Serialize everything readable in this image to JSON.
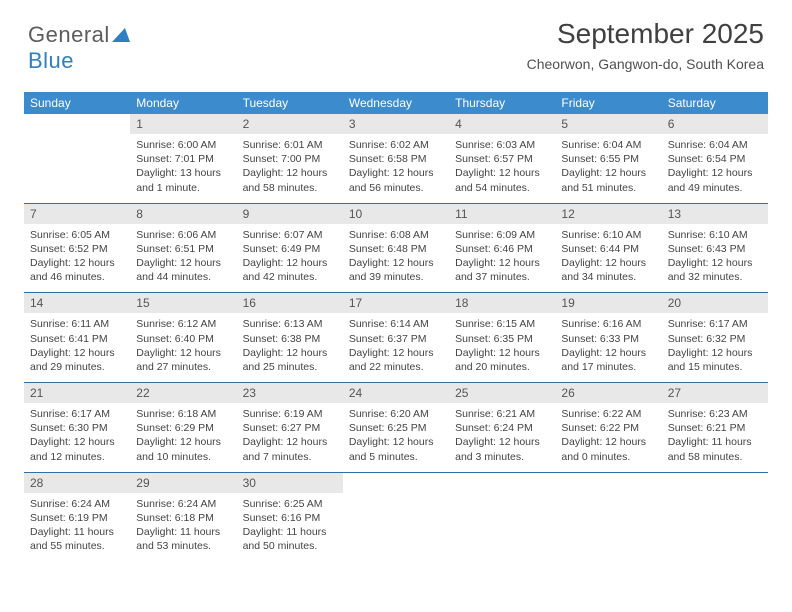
{
  "logo": {
    "text1": "General",
    "text2": "Blue"
  },
  "title": "September 2025",
  "subtitle": "Cheorwon, Gangwon-do, South Korea",
  "colors": {
    "header_bg": "#3b8bcd",
    "header_text": "#ffffff",
    "daynum_bg": "#e8e8e8",
    "row_border": "#2f6fa5",
    "title_color": "#404040",
    "body_text": "#444444",
    "logo_gray": "#5d5d5d",
    "logo_blue": "#2f7fc2"
  },
  "typography": {
    "title_fontsize": 28,
    "subtitle_fontsize": 14,
    "header_fontsize": 12,
    "daynum_fontsize": 12,
    "body_fontsize": 10.5
  },
  "daynames": [
    "Sunday",
    "Monday",
    "Tuesday",
    "Wednesday",
    "Thursday",
    "Friday",
    "Saturday"
  ],
  "weeks": [
    [
      {
        "n": "",
        "sr": "",
        "ss": "",
        "dl": ""
      },
      {
        "n": "1",
        "sr": "Sunrise: 6:00 AM",
        "ss": "Sunset: 7:01 PM",
        "dl": "Daylight: 13 hours and 1 minute."
      },
      {
        "n": "2",
        "sr": "Sunrise: 6:01 AM",
        "ss": "Sunset: 7:00 PM",
        "dl": "Daylight: 12 hours and 58 minutes."
      },
      {
        "n": "3",
        "sr": "Sunrise: 6:02 AM",
        "ss": "Sunset: 6:58 PM",
        "dl": "Daylight: 12 hours and 56 minutes."
      },
      {
        "n": "4",
        "sr": "Sunrise: 6:03 AM",
        "ss": "Sunset: 6:57 PM",
        "dl": "Daylight: 12 hours and 54 minutes."
      },
      {
        "n": "5",
        "sr": "Sunrise: 6:04 AM",
        "ss": "Sunset: 6:55 PM",
        "dl": "Daylight: 12 hours and 51 minutes."
      },
      {
        "n": "6",
        "sr": "Sunrise: 6:04 AM",
        "ss": "Sunset: 6:54 PM",
        "dl": "Daylight: 12 hours and 49 minutes."
      }
    ],
    [
      {
        "n": "7",
        "sr": "Sunrise: 6:05 AM",
        "ss": "Sunset: 6:52 PM",
        "dl": "Daylight: 12 hours and 46 minutes."
      },
      {
        "n": "8",
        "sr": "Sunrise: 6:06 AM",
        "ss": "Sunset: 6:51 PM",
        "dl": "Daylight: 12 hours and 44 minutes."
      },
      {
        "n": "9",
        "sr": "Sunrise: 6:07 AM",
        "ss": "Sunset: 6:49 PM",
        "dl": "Daylight: 12 hours and 42 minutes."
      },
      {
        "n": "10",
        "sr": "Sunrise: 6:08 AM",
        "ss": "Sunset: 6:48 PM",
        "dl": "Daylight: 12 hours and 39 minutes."
      },
      {
        "n": "11",
        "sr": "Sunrise: 6:09 AM",
        "ss": "Sunset: 6:46 PM",
        "dl": "Daylight: 12 hours and 37 minutes."
      },
      {
        "n": "12",
        "sr": "Sunrise: 6:10 AM",
        "ss": "Sunset: 6:44 PM",
        "dl": "Daylight: 12 hours and 34 minutes."
      },
      {
        "n": "13",
        "sr": "Sunrise: 6:10 AM",
        "ss": "Sunset: 6:43 PM",
        "dl": "Daylight: 12 hours and 32 minutes."
      }
    ],
    [
      {
        "n": "14",
        "sr": "Sunrise: 6:11 AM",
        "ss": "Sunset: 6:41 PM",
        "dl": "Daylight: 12 hours and 29 minutes."
      },
      {
        "n": "15",
        "sr": "Sunrise: 6:12 AM",
        "ss": "Sunset: 6:40 PM",
        "dl": "Daylight: 12 hours and 27 minutes."
      },
      {
        "n": "16",
        "sr": "Sunrise: 6:13 AM",
        "ss": "Sunset: 6:38 PM",
        "dl": "Daylight: 12 hours and 25 minutes."
      },
      {
        "n": "17",
        "sr": "Sunrise: 6:14 AM",
        "ss": "Sunset: 6:37 PM",
        "dl": "Daylight: 12 hours and 22 minutes."
      },
      {
        "n": "18",
        "sr": "Sunrise: 6:15 AM",
        "ss": "Sunset: 6:35 PM",
        "dl": "Daylight: 12 hours and 20 minutes."
      },
      {
        "n": "19",
        "sr": "Sunrise: 6:16 AM",
        "ss": "Sunset: 6:33 PM",
        "dl": "Daylight: 12 hours and 17 minutes."
      },
      {
        "n": "20",
        "sr": "Sunrise: 6:17 AM",
        "ss": "Sunset: 6:32 PM",
        "dl": "Daylight: 12 hours and 15 minutes."
      }
    ],
    [
      {
        "n": "21",
        "sr": "Sunrise: 6:17 AM",
        "ss": "Sunset: 6:30 PM",
        "dl": "Daylight: 12 hours and 12 minutes."
      },
      {
        "n": "22",
        "sr": "Sunrise: 6:18 AM",
        "ss": "Sunset: 6:29 PM",
        "dl": "Daylight: 12 hours and 10 minutes."
      },
      {
        "n": "23",
        "sr": "Sunrise: 6:19 AM",
        "ss": "Sunset: 6:27 PM",
        "dl": "Daylight: 12 hours and 7 minutes."
      },
      {
        "n": "24",
        "sr": "Sunrise: 6:20 AM",
        "ss": "Sunset: 6:25 PM",
        "dl": "Daylight: 12 hours and 5 minutes."
      },
      {
        "n": "25",
        "sr": "Sunrise: 6:21 AM",
        "ss": "Sunset: 6:24 PM",
        "dl": "Daylight: 12 hours and 3 minutes."
      },
      {
        "n": "26",
        "sr": "Sunrise: 6:22 AM",
        "ss": "Sunset: 6:22 PM",
        "dl": "Daylight: 12 hours and 0 minutes."
      },
      {
        "n": "27",
        "sr": "Sunrise: 6:23 AM",
        "ss": "Sunset: 6:21 PM",
        "dl": "Daylight: 11 hours and 58 minutes."
      }
    ],
    [
      {
        "n": "28",
        "sr": "Sunrise: 6:24 AM",
        "ss": "Sunset: 6:19 PM",
        "dl": "Daylight: 11 hours and 55 minutes."
      },
      {
        "n": "29",
        "sr": "Sunrise: 6:24 AM",
        "ss": "Sunset: 6:18 PM",
        "dl": "Daylight: 11 hours and 53 minutes."
      },
      {
        "n": "30",
        "sr": "Sunrise: 6:25 AM",
        "ss": "Sunset: 6:16 PM",
        "dl": "Daylight: 11 hours and 50 minutes."
      },
      {
        "n": "",
        "sr": "",
        "ss": "",
        "dl": ""
      },
      {
        "n": "",
        "sr": "",
        "ss": "",
        "dl": ""
      },
      {
        "n": "",
        "sr": "",
        "ss": "",
        "dl": ""
      },
      {
        "n": "",
        "sr": "",
        "ss": "",
        "dl": ""
      }
    ]
  ]
}
